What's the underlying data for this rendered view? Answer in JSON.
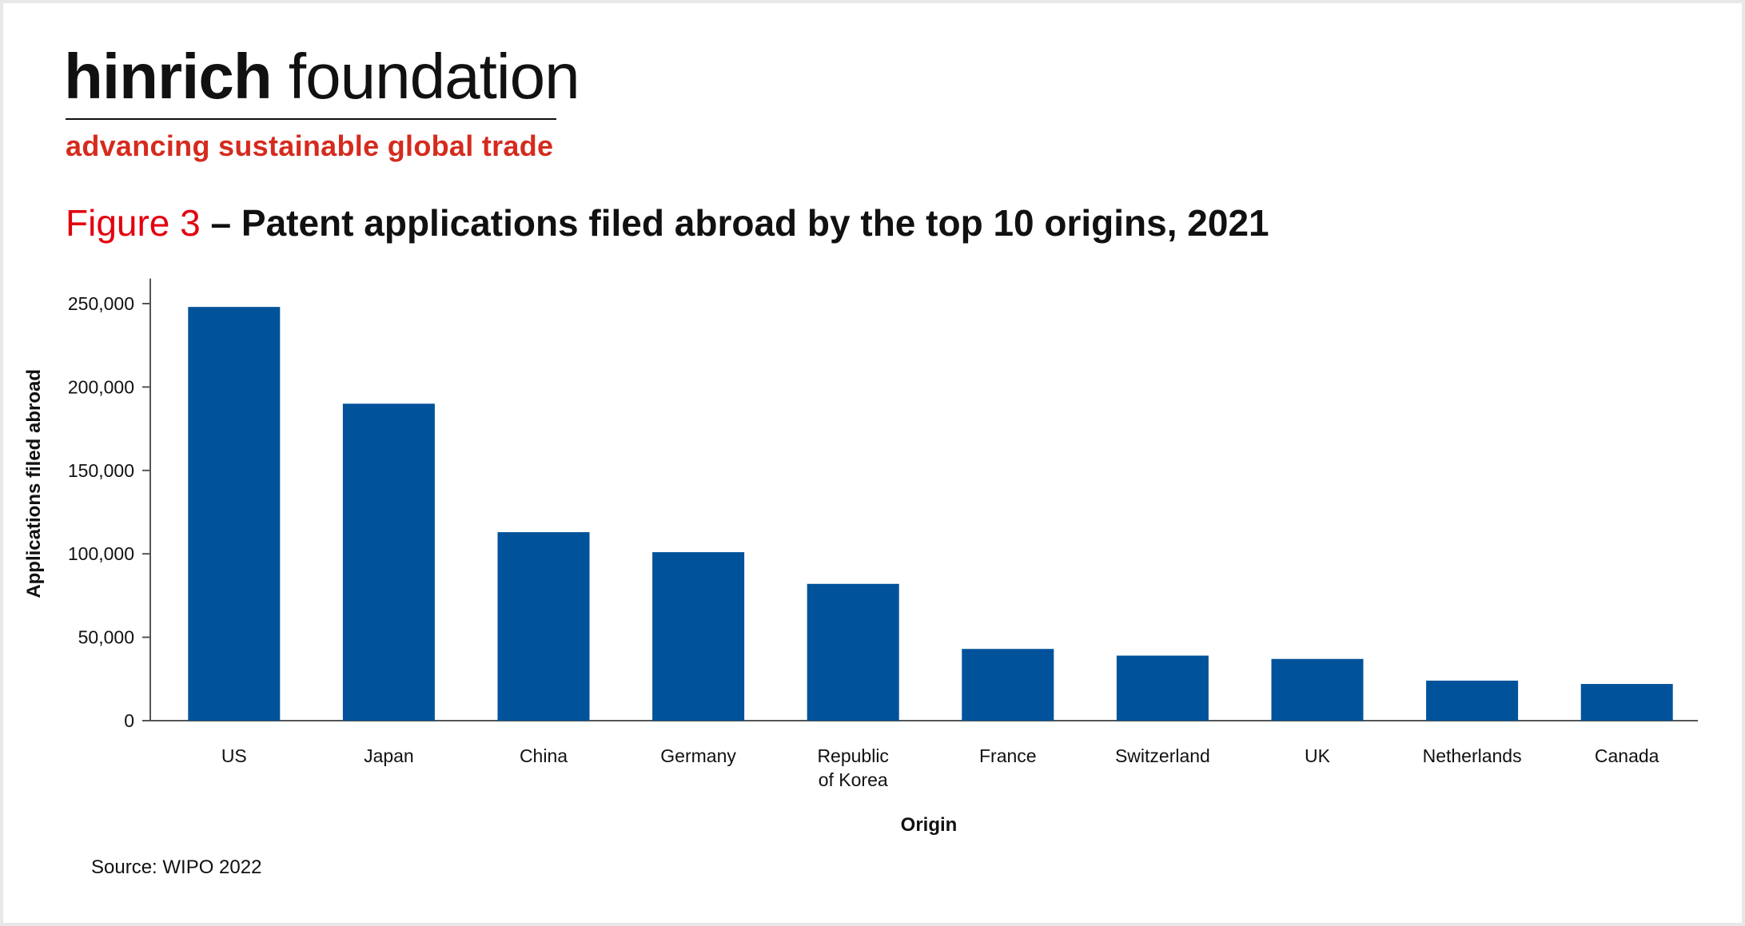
{
  "logo": {
    "name_bold": "hinrich",
    "name_regular": " foundation",
    "tagline": "advancing sustainable global trade"
  },
  "figure": {
    "label": "Figure 3",
    "title": " – Patent applications filed abroad by the top 10 origins, 2021"
  },
  "source": "Source: WIPO 2022",
  "colors": {
    "bar": "#00529b",
    "accent": "#e3000f",
    "tagline": "#d52b1e"
  },
  "chart_data": {
    "type": "bar",
    "title": "Patent applications filed abroad by the top 10 origins, 2021",
    "xlabel": "Origin",
    "ylabel": "Applications filed abroad",
    "ylim": [
      0,
      265000
    ],
    "yticks": [
      0,
      50000,
      100000,
      150000,
      200000,
      250000
    ],
    "ytick_labels": [
      "0",
      "50,000",
      "100,000",
      "150,000",
      "200,000",
      "250,000"
    ],
    "categories": [
      "US",
      "Japan",
      "China",
      "Germany",
      "Republic of Korea",
      "France",
      "Switzerland",
      "UK",
      "Netherlands",
      "Canada"
    ],
    "category_lines": [
      [
        "US"
      ],
      [
        "Japan"
      ],
      [
        "China"
      ],
      [
        "Germany"
      ],
      [
        "Republic",
        "of Korea"
      ],
      [
        "France"
      ],
      [
        "Switzerland"
      ],
      [
        "UK"
      ],
      [
        "Netherlands"
      ],
      [
        "Canada"
      ]
    ],
    "values": [
      248000,
      190000,
      113000,
      101000,
      82000,
      43000,
      39000,
      37000,
      24000,
      22000
    ],
    "grid": false,
    "legend": "none"
  }
}
